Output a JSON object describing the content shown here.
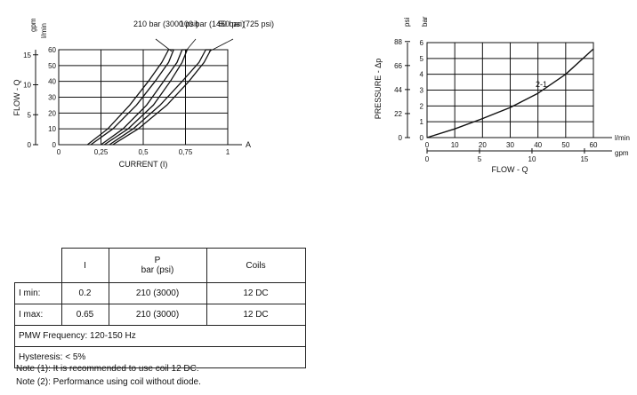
{
  "chart_data": [
    {
      "type": "line",
      "title": "",
      "xlabel": "CURRENT (I)",
      "xunit": "A",
      "xticks": [
        "0",
        "0,25",
        "0,5",
        "0,75",
        "1"
      ],
      "xlim": [
        0,
        1
      ],
      "ylabel": "FLOW - Q",
      "yunit_left": "l/min",
      "yunit_outer": "gpm",
      "yticks_left": [
        "0",
        "10",
        "20",
        "30",
        "40",
        "50",
        "60"
      ],
      "yticks_outer": [
        "0",
        "5",
        "10",
        "15"
      ],
      "ylim": [
        0,
        60
      ],
      "grid": true,
      "series": [
        {
          "name": "210 bar (3000 psi)",
          "band": [
            {
              "x": [
                0.17,
                0.29,
                0.42,
                0.53,
                0.61,
                0.65
              ],
              "y": [
                0,
                10,
                25,
                40,
                52,
                60
              ]
            },
            {
              "x": [
                0.19,
                0.32,
                0.46,
                0.57,
                0.65,
                0.68
              ],
              "y": [
                0,
                10,
                25,
                40,
                52,
                60
              ]
            }
          ]
        },
        {
          "name": "100 bar (1450 psi)",
          "band": [
            {
              "x": [
                0.25,
                0.38,
                0.52,
                0.62,
                0.7,
                0.73
              ],
              "y": [
                0,
                10,
                25,
                40,
                52,
                60
              ]
            },
            {
              "x": [
                0.27,
                0.41,
                0.56,
                0.66,
                0.73,
                0.76
              ],
              "y": [
                0,
                10,
                25,
                40,
                52,
                60
              ]
            }
          ]
        },
        {
          "name": "50 bar (725 psi)",
          "band": [
            {
              "x": [
                0.3,
                0.44,
                0.6,
                0.73,
                0.83,
                0.87
              ],
              "y": [
                0,
                10,
                25,
                40,
                52,
                60
              ]
            },
            {
              "x": [
                0.32,
                0.47,
                0.64,
                0.77,
                0.86,
                0.9
              ],
              "y": [
                0,
                10,
                25,
                40,
                52,
                60
              ]
            }
          ]
        }
      ]
    },
    {
      "type": "line",
      "title": "",
      "xlabel": "FLOW - Q",
      "xunit_upper": "l/min",
      "xunit_lower": "gpm",
      "xticks_upper": [
        "0",
        "10",
        "20",
        "30",
        "40",
        "50",
        "60"
      ],
      "xticks_lower": [
        "0",
        "5",
        "10",
        "15"
      ],
      "xlim": [
        0,
        60
      ],
      "ylabel": "PRESSURE - Δp",
      "yunit_inner": "bar",
      "yunit_outer": "psi",
      "yticks_inner": [
        "0",
        "1",
        "2",
        "3",
        "4",
        "5",
        "6"
      ],
      "yticks_outer": [
        "0",
        "22",
        "44",
        "66",
        "88"
      ],
      "ylim": [
        0,
        6
      ],
      "grid": true,
      "series": [
        {
          "name": "2-1",
          "x": [
            0,
            10,
            20,
            30,
            40,
            50,
            60
          ],
          "y": [
            0,
            0.55,
            1.2,
            1.9,
            2.8,
            4.0,
            5.6
          ]
        }
      ]
    }
  ],
  "table": {
    "header": {
      "c1": "",
      "c2": "I",
      "c3_line1": "P",
      "c3_line2": "bar (psi)",
      "c4": "Coils"
    },
    "rows": [
      {
        "label": "I min:",
        "i": "0.2",
        "p": "210 (3000)",
        "coils": "12 DC"
      },
      {
        "label": "I max:",
        "i": "0.65",
        "p": "210 (3000)",
        "coils": "12 DC"
      }
    ],
    "pmw": "PMW Frequency:  120-150 Hz",
    "hysteresis": "Hysteresis:  < 5%"
  },
  "notes": [
    "Note (1): It is recommended to use coil 12 DC.",
    "Note (2): Performance using coil without diode."
  ]
}
